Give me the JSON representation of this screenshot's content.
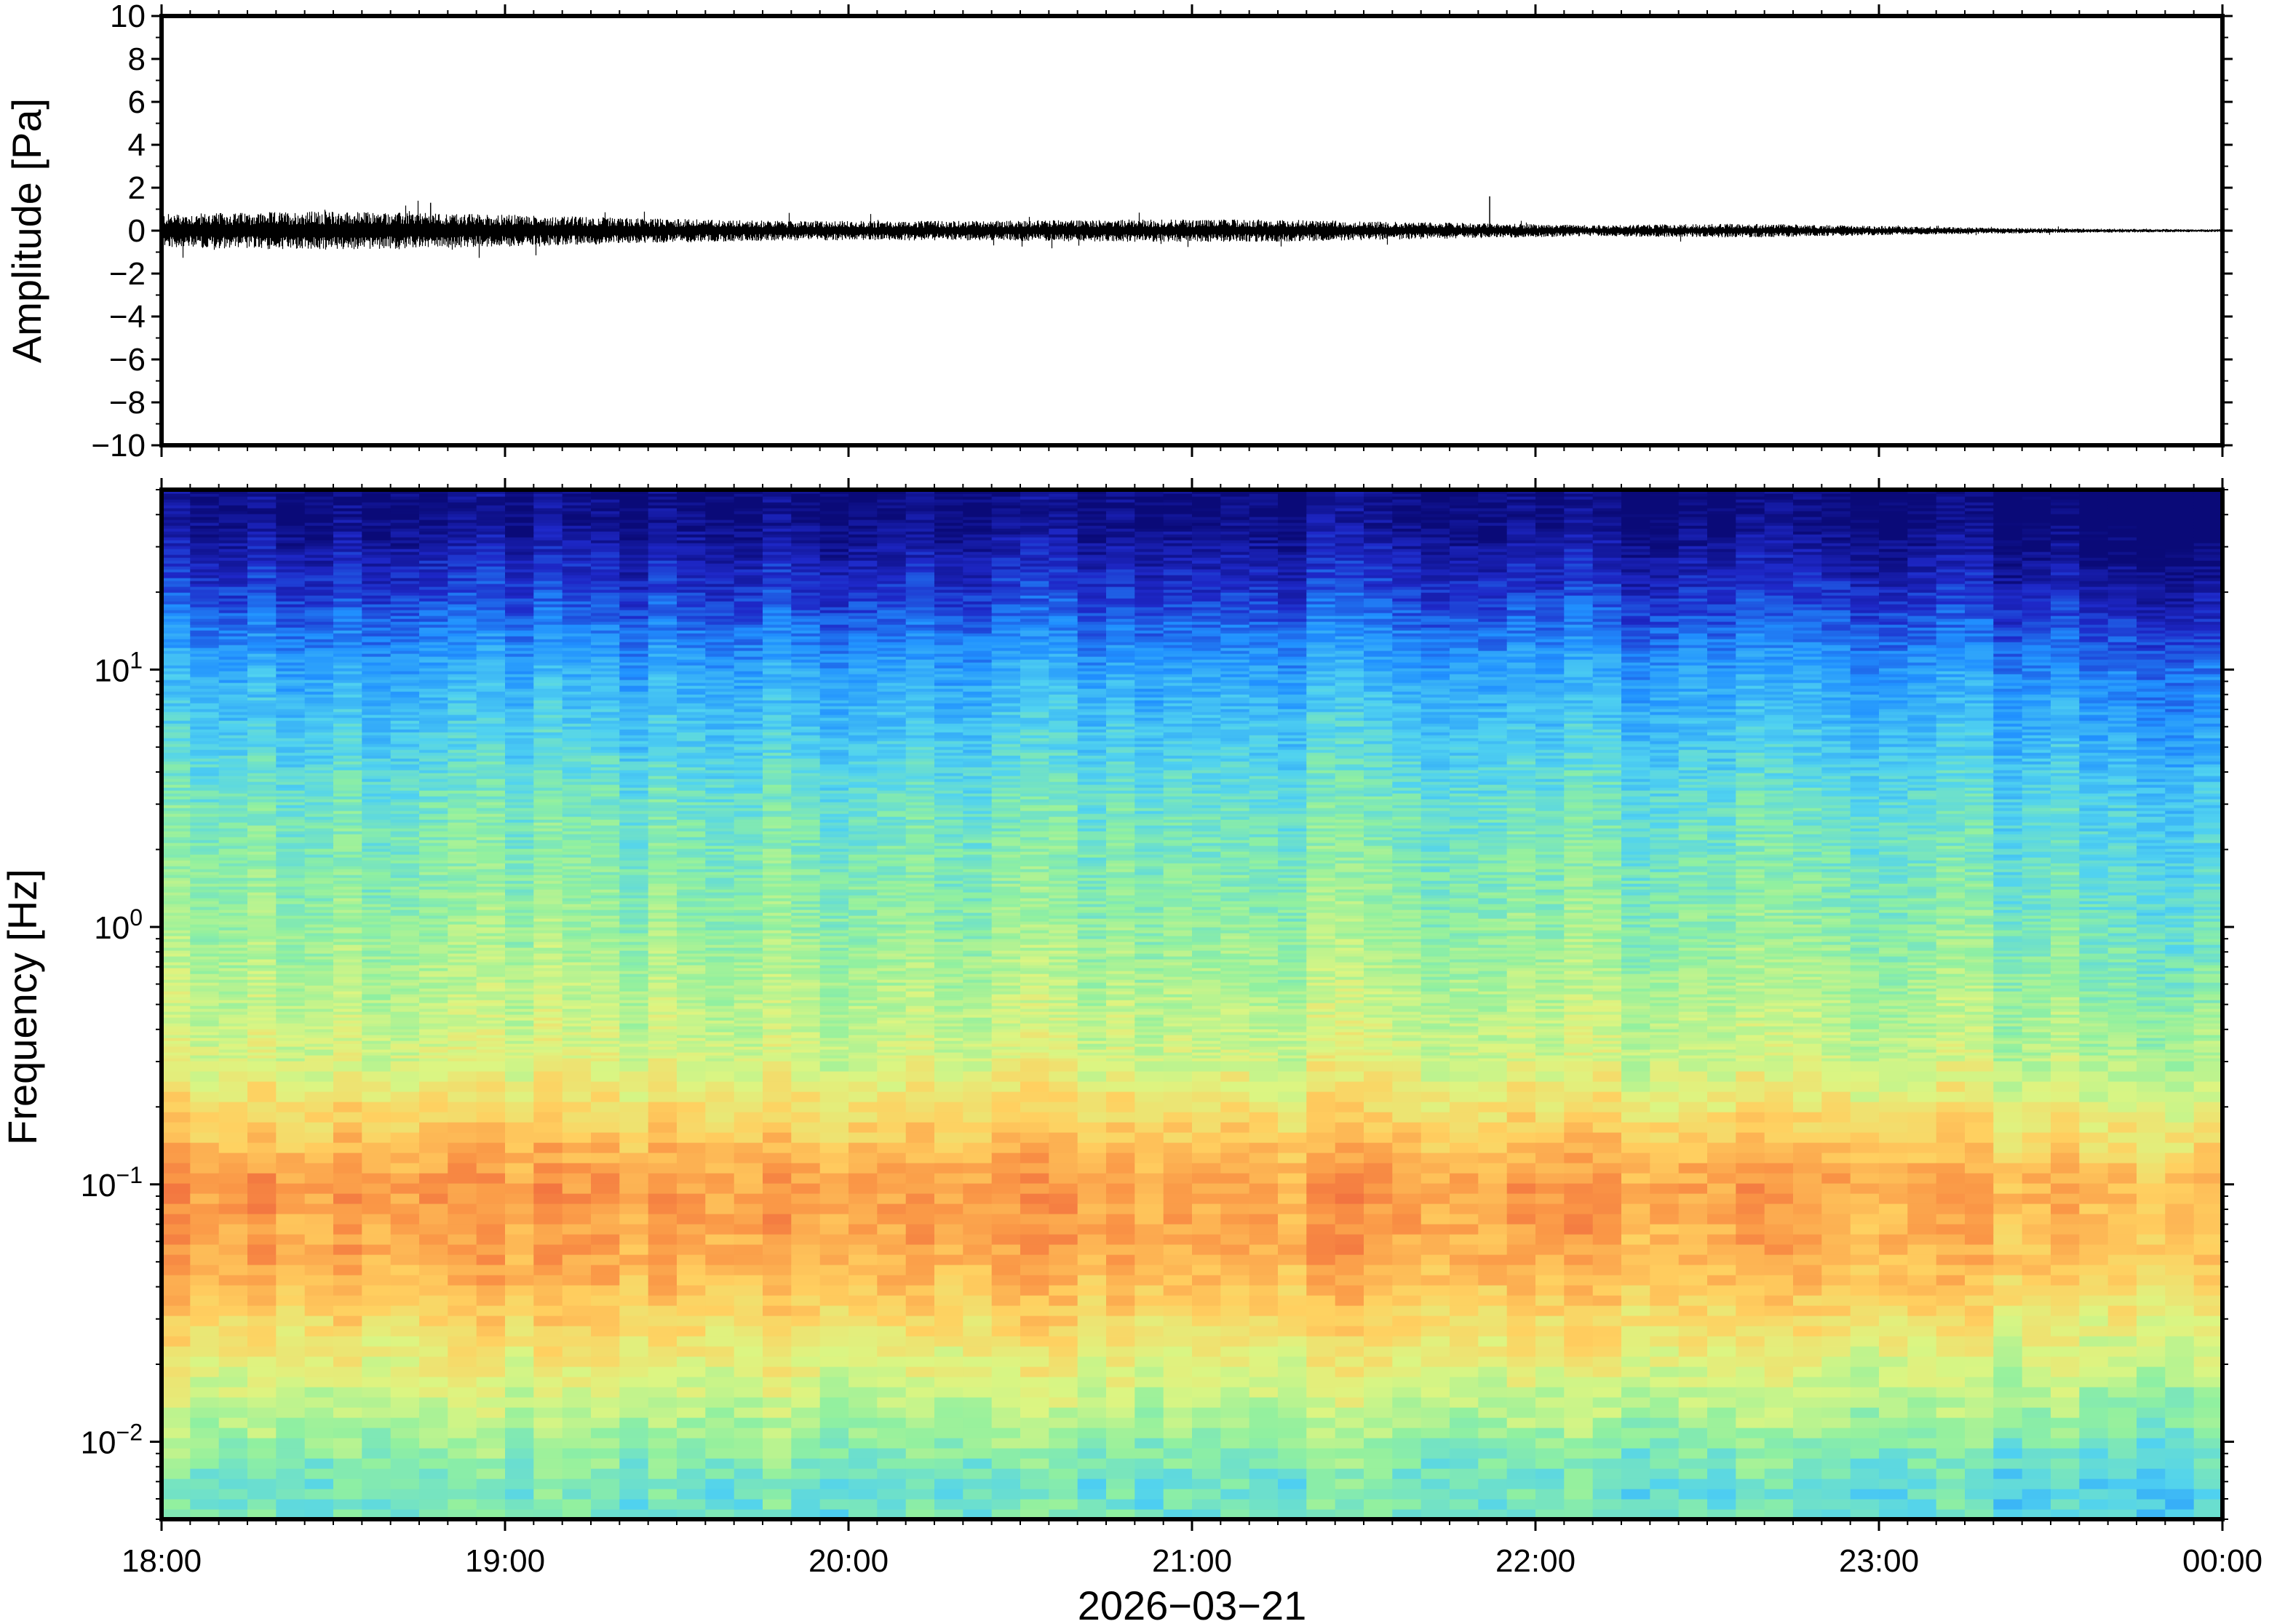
{
  "chart_data": [
    {
      "type": "line",
      "panel": "waveform",
      "ylabel": "Amplitude [Pa]",
      "ylim": [
        -10,
        10
      ],
      "yticks": [
        10,
        8,
        6,
        4,
        2,
        0,
        -2,
        -4,
        -6,
        -8,
        -10
      ],
      "ytick_labels": [
        "10",
        "8",
        "6",
        "4",
        "2",
        "0",
        "−2",
        "−4",
        "−6",
        "−8",
        "−10"
      ],
      "xlim": [
        "18:00",
        "00:00"
      ],
      "series": [
        {
          "x": [
            "18:00",
            "18:30",
            "19:00",
            "19:30",
            "20:00",
            "20:30",
            "21:00",
            "21:30",
            "22:00",
            "22:30",
            "23:00",
            "23:30",
            "23:45",
            "00:00"
          ],
          "envelope_pa": [
            0.6,
            0.7,
            0.6,
            0.45,
            0.35,
            0.35,
            0.4,
            0.4,
            0.3,
            0.2,
            0.25,
            0.15,
            0.08,
            0.05
          ]
        }
      ],
      "annotations": [
        {
          "x": "18:47",
          "peak_pa": 1.3
        },
        {
          "x": "21:52",
          "peak_pa": 1.6
        }
      ]
    },
    {
      "type": "heatmap",
      "panel": "spectrogram",
      "ylabel": "Frequency [Hz]",
      "yscale": "log",
      "ylim": [
        0.005,
        50
      ],
      "ytick_labels": [
        {
          "base": "10",
          "exp": "1",
          "value": 10
        },
        {
          "base": "10",
          "exp": "0",
          "value": 1
        },
        {
          "base": "10",
          "exp": "−1",
          "value": 0.1
        },
        {
          "base": "10",
          "exp": "−2",
          "value": 0.01
        }
      ],
      "xlabel": "2026−03−21",
      "xticks": [
        "18:00",
        "19:00",
        "20:00",
        "21:00",
        "22:00",
        "23:00",
        "00:00"
      ],
      "colormap": "jet",
      "colors": {
        "low": "#0a0a78",
        "mid_low": "#2090ff",
        "mid": "#90f0a0",
        "mid_high": "#ffd060",
        "high": "#e84838"
      },
      "description_rows": [
        {
          "freq_hz": 40,
          "level": 0.02
        },
        {
          "freq_hz": 20,
          "level": 0.15
        },
        {
          "freq_hz": 10,
          "level": 0.3
        },
        {
          "freq_hz": 3,
          "level": 0.45
        },
        {
          "freq_hz": 1,
          "level": 0.52
        },
        {
          "freq_hz": 0.3,
          "level": 0.62
        },
        {
          "freq_hz": 0.1,
          "level": 0.85
        },
        {
          "freq_hz": 0.05,
          "level": 0.82
        },
        {
          "freq_hz": 0.02,
          "level": 0.65
        },
        {
          "freq_hz": 0.007,
          "level": 0.45
        }
      ]
    }
  ]
}
